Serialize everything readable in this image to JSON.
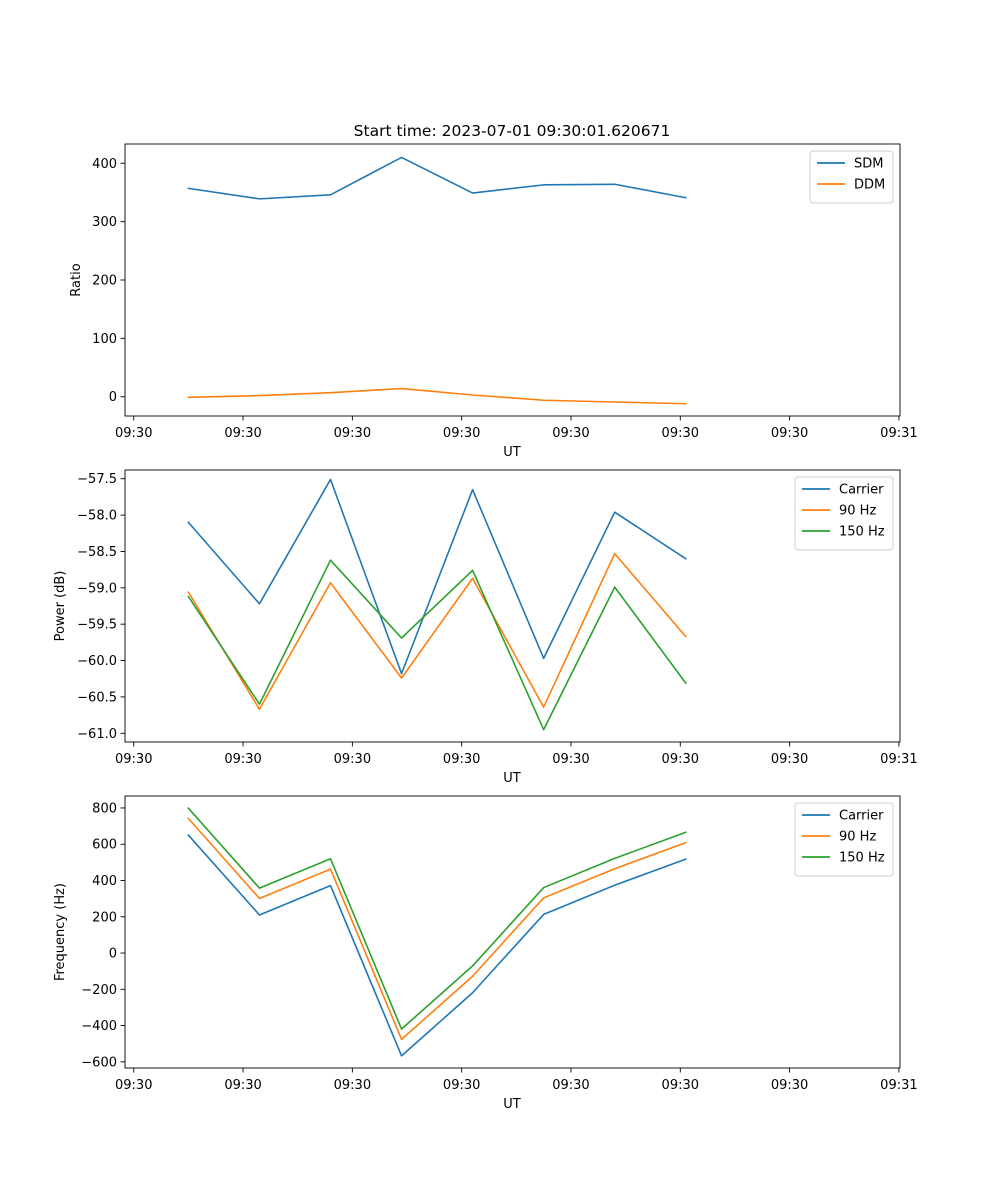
{
  "figure": {
    "title": "Start time: 2023-07-01 09:30:01.620671"
  },
  "chart_data": [
    {
      "type": "line",
      "title": "Start time: 2023-07-01 09:30:01.620671",
      "xlabel": "UT",
      "ylabel": "Ratio",
      "x_ticks": [
        "09:30",
        "09:30",
        "09:30",
        "09:30",
        "09:30",
        "09:30",
        "09:30",
        "09:31"
      ],
      "x_tick_values": [
        0,
        1,
        2,
        3,
        4,
        5,
        6,
        7
      ],
      "xlim": [
        -0.08,
        7.01
      ],
      "ylim": [
        -33,
        433
      ],
      "y_ticks": [
        "0",
        "100",
        "200",
        "300",
        "400"
      ],
      "y_tick_values": [
        0,
        100,
        200,
        300,
        400
      ],
      "x": [
        0.5,
        1.15,
        1.8,
        2.45,
        3.1,
        3.75,
        4.4,
        5.05
      ],
      "legend_position": "top-right",
      "series": [
        {
          "name": "SDM",
          "color": "#1f77b4",
          "values": [
            357,
            339,
            346,
            410,
            349,
            363,
            364,
            341
          ]
        },
        {
          "name": "DDM",
          "color": "#ff7f0e",
          "values": [
            -1,
            2,
            7,
            14,
            3,
            -6,
            -9,
            -12
          ]
        }
      ]
    },
    {
      "type": "line",
      "title": "",
      "xlabel": "UT",
      "ylabel": "Power (dB)",
      "x_ticks": [
        "09:30",
        "09:30",
        "09:30",
        "09:30",
        "09:30",
        "09:30",
        "09:30",
        "09:31"
      ],
      "x_tick_values": [
        0,
        1,
        2,
        3,
        4,
        5,
        6,
        7
      ],
      "xlim": [
        -0.08,
        7.01
      ],
      "ylim": [
        -61.12,
        -57.38
      ],
      "y_ticks": [
        "−57.5",
        "−58.0",
        "−58.5",
        "−59.0",
        "−59.5",
        "−60.0",
        "−60.5",
        "−61.0"
      ],
      "y_tick_values": [
        -57.5,
        -58.0,
        -58.5,
        -59.0,
        -59.5,
        -60.0,
        -60.5,
        -61.0
      ],
      "x": [
        0.5,
        1.15,
        1.8,
        2.45,
        3.1,
        3.75,
        4.4,
        5.05
      ],
      "legend_position": "top-right",
      "series": [
        {
          "name": "Carrier",
          "color": "#1f77b4",
          "values": [
            -58.1,
            -59.22,
            -57.51,
            -60.18,
            -57.65,
            -59.97,
            -57.96,
            -58.6
          ]
        },
        {
          "name": "90 Hz",
          "color": "#ff7f0e",
          "values": [
            -59.06,
            -60.67,
            -58.93,
            -60.24,
            -58.87,
            -60.64,
            -58.53,
            -59.67
          ]
        },
        {
          "name": "150 Hz",
          "color": "#2ca02c",
          "values": [
            -59.12,
            -60.6,
            -58.62,
            -59.69,
            -58.76,
            -60.95,
            -58.99,
            -60.31
          ]
        }
      ]
    },
    {
      "type": "line",
      "title": "",
      "xlabel": "UT",
      "ylabel": "Frequency (Hz)",
      "x_ticks": [
        "09:30",
        "09:30",
        "09:30",
        "09:30",
        "09:30",
        "09:30",
        "09:30",
        "09:31"
      ],
      "x_tick_values": [
        0,
        1,
        2,
        3,
        4,
        5,
        6,
        7
      ],
      "xlim": [
        -0.08,
        7.01
      ],
      "ylim": [
        -634,
        866
      ],
      "y_ticks": [
        "800",
        "600",
        "400",
        "200",
        "0",
        "−200",
        "−400",
        "−600"
      ],
      "y_tick_values": [
        800,
        600,
        400,
        200,
        0,
        -200,
        -400,
        -600
      ],
      "x": [
        0.5,
        1.15,
        1.8,
        2.45,
        3.1,
        3.75,
        4.4,
        5.05
      ],
      "legend_position": "top-right",
      "series": [
        {
          "name": "Carrier",
          "color": "#1f77b4",
          "values": [
            650,
            210,
            372,
            -567,
            -219,
            213,
            374,
            518
          ]
        },
        {
          "name": "90 Hz",
          "color": "#ff7f0e",
          "values": [
            742,
            301,
            463,
            -476,
            -128,
            304,
            465,
            609
          ]
        },
        {
          "name": "150 Hz",
          "color": "#2ca02c",
          "values": [
            799,
            358,
            520,
            -419,
            -71,
            361,
            522,
            666
          ]
        }
      ]
    }
  ]
}
